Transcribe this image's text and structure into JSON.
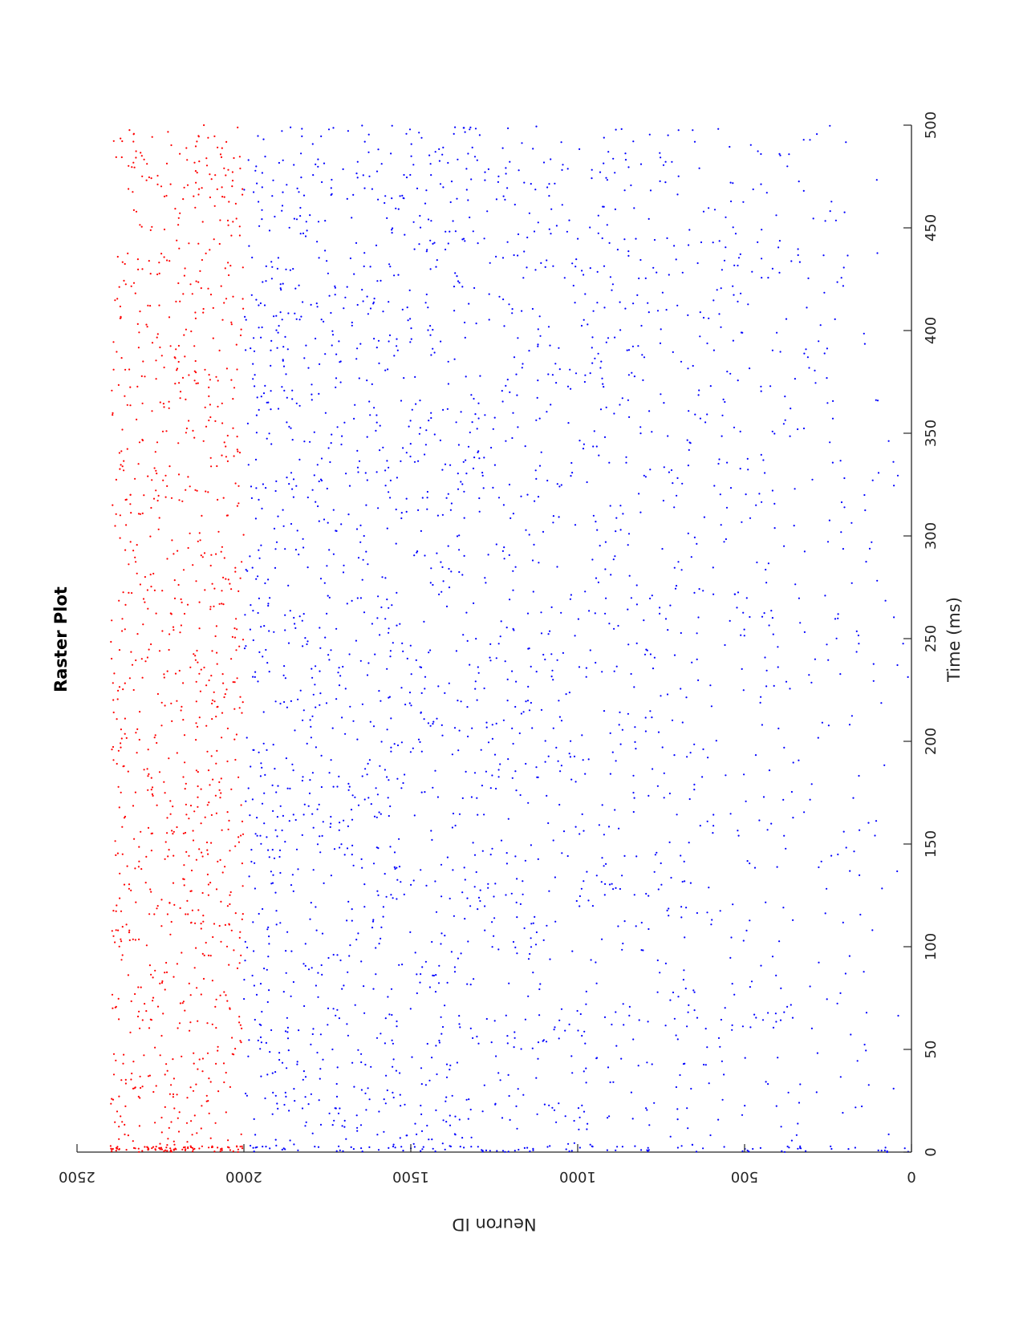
{
  "chart_data": {
    "type": "scatter",
    "orientation": "rotated-90-degrees",
    "title": "Raster Plot",
    "xlabel": "Time (ms)",
    "ylabel": "Neuron ID",
    "xlim": [
      0,
      500
    ],
    "ylim": [
      0,
      2500
    ],
    "xticks": [
      0,
      50,
      100,
      150,
      200,
      250,
      300,
      350,
      400,
      450,
      500
    ],
    "yticks": [
      0,
      500,
      1000,
      1500,
      2000,
      2500
    ],
    "grid": false,
    "legend": "none",
    "series": [
      {
        "neuron_range": [
          1,
          2000
        ],
        "color": "#0000ff",
        "marker": "dot",
        "spike_count_estimate": 2600
      },
      {
        "neuron_range": [
          2001,
          2400
        ],
        "color": "#ff0000",
        "marker": "dot",
        "spike_count_estimate": 1000
      }
    ]
  }
}
